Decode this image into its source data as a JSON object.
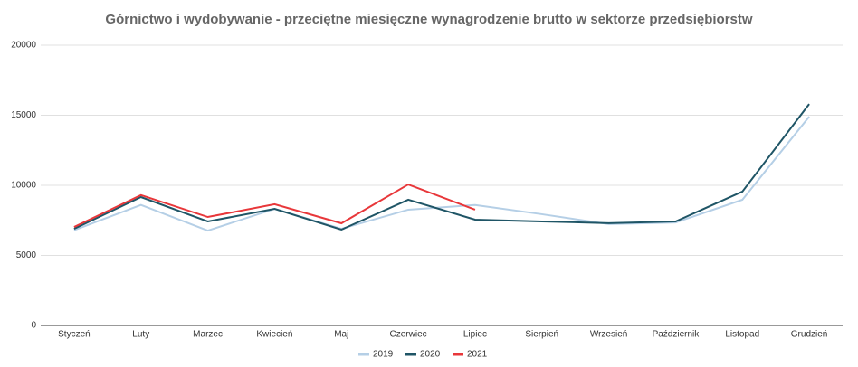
{
  "chart_data": {
    "type": "line",
    "title": "Górnictwo i wydobywanie - przeciętne miesięczne wynagrodzenie brutto w sektorze przedsiębiorstw",
    "categories": [
      "Styczeń",
      "Luty",
      "Marzec",
      "Kwiecień",
      "Maj",
      "Czerwiec",
      "Lipiec",
      "Sierpień",
      "Wrzesień",
      "Październik",
      "Listopad",
      "Grudzień"
    ],
    "series": [
      {
        "name": "2019",
        "color": "#b5cfe6",
        "values": [
          6800,
          8600,
          6770,
          8320,
          6900,
          8260,
          8600,
          7940,
          7230,
          7350,
          8970,
          14900
        ]
      },
      {
        "name": "2020",
        "color": "#1f5566",
        "values": [
          6900,
          9160,
          7420,
          8320,
          6840,
          8970,
          7550,
          7420,
          7300,
          7420,
          9550,
          15800
        ]
      },
      {
        "name": "2021",
        "color": "#e8373a",
        "values": [
          7030,
          9300,
          7740,
          8650,
          7290,
          10060,
          8260,
          null,
          null,
          null,
          null,
          null
        ]
      }
    ],
    "ylim": [
      0,
      20000
    ],
    "yticks": [
      0,
      5000,
      10000,
      15000,
      20000
    ],
    "grid": true,
    "legend": "bottom"
  }
}
